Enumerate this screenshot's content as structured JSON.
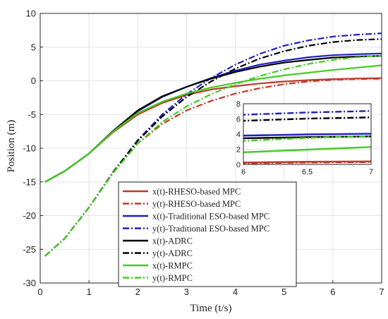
{
  "chart_data": {
    "type": "line",
    "xlabel": "Time (t/s)",
    "ylabel": "Position (m)",
    "xlim": [
      0,
      7
    ],
    "ylim": [
      -30,
      10
    ],
    "xticks": [
      0,
      1,
      2,
      3,
      4,
      5,
      6,
      7
    ],
    "yticks": [
      -30,
      -25,
      -20,
      -15,
      -10,
      -5,
      0,
      5,
      10
    ],
    "grid": true,
    "legend_position": "bottom-center",
    "series": [
      {
        "name": "x(t)-RHESO-based MPC",
        "color": "#c0392b",
        "style": "solid",
        "x": [
          0.1,
          0.5,
          1,
          1.5,
          2,
          2.5,
          3,
          3.5,
          4,
          4.5,
          5,
          5.5,
          6,
          6.5,
          7
        ],
        "y": [
          -15,
          -13.4,
          -10.8,
          -7.6,
          -5.0,
          -3.3,
          -2.1,
          -1.3,
          -0.8,
          -0.4,
          -0.1,
          0.1,
          0.25,
          0.35,
          0.4
        ]
      },
      {
        "name": "y(t)-RHESO-based MPC",
        "color": "#c0392b",
        "style": "dashdot",
        "x": [
          0.1,
          0.5,
          1,
          1.5,
          2,
          2.5,
          3,
          3.5,
          4,
          4.5,
          5,
          5.5,
          6,
          6.5,
          7
        ],
        "y": [
          -26,
          -23.4,
          -18.8,
          -13.6,
          -9.3,
          -6.4,
          -4.4,
          -3.0,
          -1.9,
          -1.1,
          -0.5,
          -0.1,
          0.15,
          0.25,
          0.3
        ]
      },
      {
        "name": "x(t)-Traditional ESO-based MPC",
        "color": "#1f1fbf",
        "style": "solid",
        "x": [
          0.1,
          0.5,
          1,
          1.5,
          2,
          2.5,
          3,
          3.5,
          4,
          4.5,
          5,
          5.5,
          6,
          6.5,
          7
        ],
        "y": [
          -15,
          -13.4,
          -10.8,
          -7.4,
          -4.5,
          -2.4,
          -0.9,
          0.4,
          1.5,
          2.4,
          3.0,
          3.5,
          3.8,
          3.95,
          4.05
        ]
      },
      {
        "name": "y(t)-Traditional ESO-based MPC",
        "color": "#1f1fbf",
        "style": "dashdot",
        "x": [
          0.1,
          0.5,
          1,
          1.5,
          2,
          2.5,
          3,
          3.5,
          4,
          4.5,
          5,
          5.5,
          6,
          6.5,
          7
        ],
        "y": [
          -26,
          -23.4,
          -18.8,
          -13.5,
          -8.8,
          -5.0,
          -2.0,
          0.4,
          2.4,
          4.0,
          5.2,
          6.0,
          6.55,
          6.85,
          7.05
        ]
      },
      {
        "name": "x(t)-ADRC",
        "color": "#000000",
        "style": "solid",
        "x": [
          0.1,
          0.5,
          1,
          1.5,
          2,
          2.5,
          3,
          3.5,
          4,
          4.5,
          5,
          5.5,
          6,
          6.5,
          7
        ],
        "y": [
          -15,
          -13.4,
          -10.8,
          -7.4,
          -4.4,
          -2.3,
          -0.9,
          0.3,
          1.3,
          2.1,
          2.7,
          3.1,
          3.45,
          3.6,
          3.7
        ]
      },
      {
        "name": "y(t)-ADRC",
        "color": "#000000",
        "style": "dashdot",
        "x": [
          0.1,
          0.5,
          1,
          1.5,
          2,
          2.5,
          3,
          3.5,
          4,
          4.5,
          5,
          5.5,
          6,
          6.5,
          7
        ],
        "y": [
          -26,
          -23.4,
          -18.8,
          -13.5,
          -8.9,
          -5.3,
          -2.4,
          -0.1,
          1.8,
          3.3,
          4.4,
          5.2,
          5.75,
          6.05,
          6.2
        ]
      },
      {
        "name": "x(t)-RMPC",
        "color": "#44cc22",
        "style": "solid",
        "x": [
          0.1,
          0.5,
          1,
          1.5,
          2,
          2.5,
          3,
          3.5,
          4,
          4.5,
          5,
          5.5,
          6,
          6.5,
          7
        ],
        "y": [
          -15,
          -13.4,
          -10.8,
          -7.5,
          -4.8,
          -3.1,
          -1.9,
          -1.0,
          -0.3,
          0.3,
          0.8,
          1.2,
          1.6,
          1.95,
          2.3
        ]
      },
      {
        "name": "y(t)-RMPC",
        "color": "#44cc22",
        "style": "dashdot",
        "x": [
          0.1,
          0.5,
          1,
          1.5,
          2,
          2.5,
          3,
          3.5,
          4,
          4.5,
          5,
          5.5,
          6,
          6.5,
          7
        ],
        "y": [
          -26,
          -23.4,
          -18.8,
          -13.6,
          -9.3,
          -6.1,
          -3.8,
          -2.0,
          -0.5,
          0.7,
          1.7,
          2.5,
          3.1,
          3.5,
          3.75
        ]
      }
    ],
    "inset": {
      "xlim": [
        6,
        7
      ],
      "ylim": [
        0,
        8
      ],
      "xticks": [
        6,
        6.5,
        7
      ],
      "yticks": [
        0,
        2,
        4,
        6,
        8
      ],
      "grid": true
    }
  }
}
